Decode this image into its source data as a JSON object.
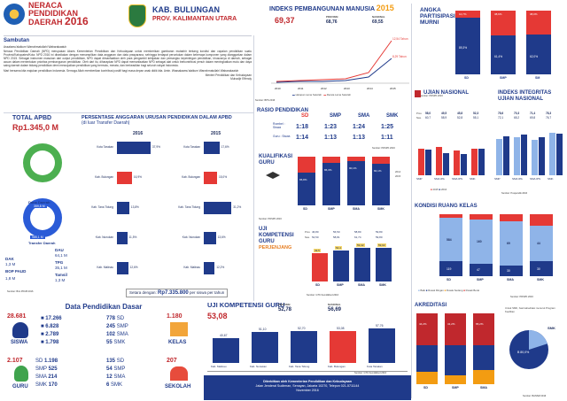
{
  "header": {
    "title_lines": [
      "NERACA",
      "PENDIDIKAN",
      "DAERAH"
    ],
    "year": "2016",
    "region_name": "KAB. BULUNGAN",
    "province_name": "PROV. KALIMANTAN UTARA"
  },
  "colors": {
    "navy": "#1f3a8a",
    "red": "#e11d1d",
    "blue": "#2a5bd7",
    "lightblue": "#8fb4e8",
    "green": "#4caf50"
  },
  "sambutan": {
    "title": "Sambutan",
    "greeting": "Assalamu'alaikum Warrahmatullahi Wabarakaatuh",
    "paragraph1": "Neraca Pendidikan Daerah (NPD) merupakan Akses Kementerian Pendidikan dan Kebudayaan untuk memberikan gambaran mutakhir tentang kondisi dan capaian pendidikan suatu Provinsi/Kabupaten/Kota. NPD 2016 ini disediakan dengan menampilkan data anggaran dan data prasyarana, sehingga terdapat peruntukan dalam keberapa komponen yang dianggarkan dalam NPD 2015. Sebagai instrumen masukan dari output pendidikan, NPD dapat dimanfaatkan oleh para pengambil kebijakan dan pemangku kepentingan pendidikan, khususnya di daerah, sebagai acuan dalam menentukan prioritas pembangunan pendidikan. Oleh dari itu, diharapkan NPD dapat memanfaatkan NPD sebagai alat untuk berkontribusi penuh dalam meningkatkan mutu dan daya saing daerah dalam bidang pendidikan demi mewujudkan pendidikan yang bermutu, merata, dan berkeadilan bagi seluruh rakyat Indonesia.",
    "paragraph2": "Mari bersama kita majukan pendidikan Indonesia. Semoga Allah memberikan kontribusi positif bagi masa depan anak didik kita. Amin. Wassalaamu'alaikum Warrahmatullahi Wabarakaatuh",
    "signature_line1": "Menteri Pendidikan dan Kebudayaan",
    "signature_line2": "Muhadjir Effendy"
  },
  "ipm": {
    "title": "INDEKS PEMBANGUNAN MANUSIA",
    "year": "2015",
    "value": "69,37",
    "provinsi_label": "PROVINSI",
    "provinsi_value": "68,76",
    "nasional_label": "NASIONAL",
    "nasional_value": "69,55",
    "annot1": "12,54 Tahun",
    "annot2": "8,29 Tahun",
    "x_labels": [
      "2010",
      "2011",
      "2012",
      "2013",
      "2014",
      "2015"
    ],
    "legend1": "Harapan Lama Sekolah",
    "legend2": "Rerata Lama Sekolah",
    "source": "Sumber: BPS 2016"
  },
  "apm": {
    "title_line1": "ANGKA",
    "title_line2": "PARTISIPASI",
    "title_line3": "MURNI",
    "categories": [
      "SD",
      "SMP",
      "SM"
    ],
    "blue_values": [
      "89,3%",
      "61,4%",
      "62,0%"
    ],
    "red_values": [
      "10,7%",
      "38,6%",
      "38,0%"
    ],
    "blue_heights": [
      89.3,
      61.4,
      62.0
    ],
    "source": "Sumber: PDSPK 2016"
  },
  "apbd": {
    "title": "TOTAL APBD",
    "value": "Rp1.345,0 M",
    "dana_daerah_label": "Dana Daerah",
    "dana_daerah_value": "359,8 M",
    "transfer_label": "Transfer Daerah",
    "transfer_value": "985,1 M",
    "dau_label": "DAU",
    "dau_value": "64,1 M",
    "tpg_label": "TPG",
    "tpg_value": "35,1 M",
    "dak_label": "DAK",
    "dak_value": "1,3 M",
    "tamsil_label": "Tamsil",
    "tamsil_value": "1,3 M",
    "bop_label": "BOP PAUD",
    "bop_value": "1,8 M",
    "source": "Sumber: Biro PKUB 2016"
  },
  "persentase": {
    "title": "PERSENTASE ANGGARAN URUSAN PENDIDIKAN DALAM APBD",
    "subtitle": "(di luar Transfer Daerah)",
    "year1": "2016",
    "year2": "2015",
    "rows_2016": [
      {
        "name": "Kota Tarakan",
        "value": "37,9%",
        "pct": 37.9,
        "highlight": false
      },
      {
        "name": "Kab. Bulungan",
        "value": "16,9%",
        "pct": 16.9,
        "highlight": true
      },
      {
        "name": "Kab. Tana Tidung",
        "value": "13,8%",
        "pct": 13.8,
        "highlight": false
      },
      {
        "name": "Kab. Nunukan",
        "value": "11,5%",
        "pct": 11.5,
        "highlight": false
      },
      {
        "name": "Kab. Malinau",
        "value": "12,6%",
        "pct": 12.6,
        "highlight": false
      }
    ],
    "rows_2015": [
      {
        "name": "Kota Tarakan",
        "value": "17,6%",
        "pct": 17.6,
        "highlight": false
      },
      {
        "name": "Kab. Bulungan",
        "value": "15,0%",
        "pct": 15.0,
        "highlight": true
      },
      {
        "name": "Kab. Tana Tidung",
        "value": "31,2%",
        "pct": 31.2,
        "highlight": false
      },
      {
        "name": "Kab. Nunukan",
        "value": "13,6%",
        "pct": 13.6,
        "highlight": false
      },
      {
        "name": "Kab. Malinau",
        "value": "12,2%",
        "pct": 12.2,
        "highlight": false
      }
    ],
    "setara_label": "Setara dengan:",
    "setara_value": "Rp7.335.800",
    "setara_suffix": "per siswa per tahun"
  },
  "rasio": {
    "title": "RASIO PENDIDIKAN",
    "rombel_label": "Rombel : Siswa",
    "guru_label": "Guru : Siswa",
    "columns": [
      "SD",
      "SMP",
      "SMA",
      "SMK"
    ],
    "rombel": [
      "1:18",
      "1:23",
      "1:24",
      "1:25"
    ],
    "guru": [
      "1:14",
      "1:13",
      "1:13",
      "1:11"
    ],
    "source": "Sumber: PDSPK 2016"
  },
  "kualifikasi": {
    "title_line1": "KUALIFIKASI",
    "title_line2": "GURU",
    "categories": [
      "SD",
      "SMP",
      "SMA",
      "SMK"
    ],
    "values": [
      "65,8%",
      "86,3%",
      "90,1%",
      "84,1%"
    ],
    "pct": [
      65.8,
      86.3,
      90.1,
      84.1
    ],
    "legend1": "2014",
    "legend2": "2015",
    "source": "Sumber: PDSPK 2016"
  },
  "ukg_daerah": {
    "title_line1": "UJI",
    "title_line2": "KOMPETENSI",
    "title_line3": "GURU",
    "subtitle": "PERJENJANG",
    "prov_label": "Prov.",
    "nas_label": "Nas.",
    "prov_values": [
      "46,80",
      "56,50",
      "58,80",
      "59,80"
    ],
    "nas_values": [
      "54,50",
      "58,81",
      "61,74",
      "59,80"
    ],
    "bar_values": [
      "49,5",
      "54,4",
      "59,42",
      "59,02"
    ],
    "pct": [
      49.5,
      54.4,
      59.42,
      59.02
    ],
    "categories": [
      "SD",
      "SMP",
      "SMA",
      "SMK"
    ],
    "source": "Sumber: GTK Kemdikbud 2016"
  },
  "un": {
    "title": "UJIAN NASIONAL",
    "prov_label": "Prov.",
    "nas_label": "Nas.",
    "prov_values": [
      "58,0",
      "49,5",
      "45,8",
      "52,3"
    ],
    "nas_values": [
      "60,7",
      "58,9",
      "52,8",
      "55,1"
    ],
    "categories": [
      "SMP",
      "SMA IPA",
      "SMA IPS",
      "SMK"
    ],
    "values_2015": [
      51.0,
      54.5,
      47.7,
      51.3
    ],
    "values_2016": [
      49.3,
      43.7,
      40.9,
      51.8
    ],
    "legend1": "2015",
    "legend2": "2016"
  },
  "iiun": {
    "title_line1": "INDEKS INTEGRITAS",
    "title_line2": "UJIAN NASIONAL",
    "prov_values": [
      "78,6",
      "70,3",
      "71,4",
      "78,3"
    ],
    "nas_values": [
      "72,1",
      "65,2",
      "69,8",
      "76,7"
    ],
    "categories": [
      "SMP",
      "SMA IPA",
      "SMA IPS",
      "SMK"
    ],
    "values_2015": [
      70.4,
      73.8,
      69.6,
      82.0
    ],
    "values_2016": [
      75.6,
      79.3,
      73.6,
      80.5
    ],
    "source": "Sumber: Puspendik 2016"
  },
  "kondisi": {
    "title": "KONDISI RUANG KELAS",
    "categories": [
      "SD",
      "SMP",
      "SMA",
      "SMK"
    ],
    "baik": [
      "119",
      "47",
      "30",
      "30"
    ],
    "rusak_ringan": [
      "584",
      "160",
      "69",
      "44"
    ],
    "baik_pct": [
      24,
      20,
      17,
      24
    ],
    "rr_pct": [
      70,
      72,
      72,
      58
    ],
    "legend": [
      "Baik",
      "Rusak Ringan",
      "Rusak Sedang",
      "Rusak Berat"
    ],
    "source": "Sumber: PDSPK 2016"
  },
  "akreditasi": {
    "title": "AKREDITASI",
    "categories": [
      "SD",
      "SMP",
      "SMA"
    ],
    "belum_pct": [
      "44,2%",
      "41,2%",
      "65,2%"
    ],
    "a_pct": [
      17,
      12,
      20
    ],
    "right_title": "Untuk SMK, hasil akreditasi menurut Program Keahlian",
    "smk_label": "SMK",
    "smk_b": "B 80,0%",
    "source": "Sumber: BANSM 2016"
  },
  "dpd": {
    "title": "Data Pendidikan Dasar",
    "siswa_label": "SISWA",
    "siswa_total": "28.681",
    "siswa_sd": "17.266",
    "siswa_smp": "6.828",
    "siswa_sma": "2.789",
    "siswa_smk": "1.798",
    "kelas_label": "KELAS",
    "kelas_total": "1.180",
    "kelas_sd": "778",
    "kelas_smp": "245",
    "kelas_sma": "102",
    "kelas_smk": "55",
    "guru_label": "GURU",
    "guru_total": "2.107",
    "guru_sd": "1.198",
    "guru_smp": "525",
    "guru_sma": "214",
    "guru_smk": "170",
    "sekolah_label": "SEKOLAH",
    "sekolah_total": "207",
    "sekolah_sd": "135",
    "sekolah_smp": "54",
    "sekolah_sma": "12",
    "sekolah_smk": "6",
    "level_sd": "SD",
    "level_smp": "SMP",
    "level_sma": "SMA",
    "level_smk": "SMK"
  },
  "ukg": {
    "title": "UJI KOMPETENSI GURU",
    "value": "53,08",
    "provinsi_label": "PROVINSI",
    "provinsi_value": "52,78",
    "nasional_label": "NASIONAL",
    "nasional_value": "56,69",
    "bars": [
      {
        "name": "Kab. Malinau",
        "value": "40,67",
        "pct": 40.67,
        "highlight": false
      },
      {
        "name": "Kab. Nunukan",
        "value": "51,10",
        "pct": 51.1,
        "highlight": false
      },
      {
        "name": "Kab. Tana Tidung",
        "value": "52,70",
        "pct": 52.7,
        "highlight": false
      },
      {
        "name": "Kab. Bulungan",
        "value": "53,08",
        "pct": 53.08,
        "highlight": true
      },
      {
        "name": "Kota Tarakan",
        "value": "57,76",
        "pct": 57.76,
        "highlight": false
      }
    ],
    "source": "Sumber: GTK Kemdikbud 2016"
  },
  "footer": {
    "line1": "Diterbitkan oleh Kementerian Pendidikan dan Kebudayaan",
    "line2": "Jalan Jenderal Sudirman, Senayan, Jakarta 10270, Telepon 021-5711144",
    "line3": "November 2016"
  }
}
